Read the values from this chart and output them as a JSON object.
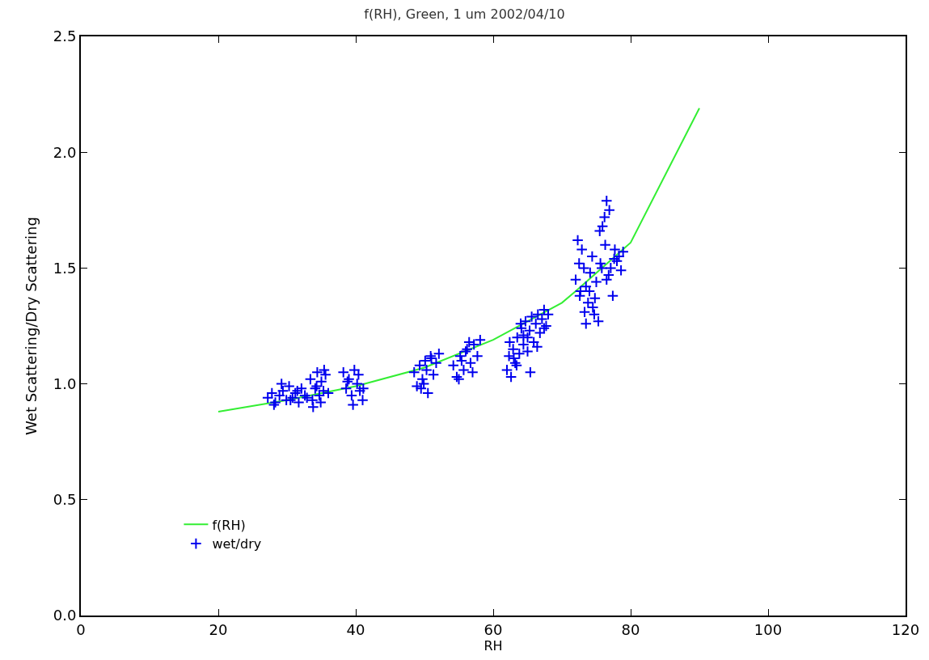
{
  "chart_data": {
    "type": "scatter",
    "title": "f(RH), Green, 1 um 2002/04/10",
    "xlabel": "RH",
    "ylabel": "Wet Scattering/Dry Scattering",
    "xlim": [
      0,
      120
    ],
    "xticks": [
      0,
      20,
      40,
      60,
      80,
      100,
      120
    ],
    "ylim": [
      0,
      2.5
    ],
    "yticks": [
      {
        "value": 0,
        "label": "0.0"
      },
      {
        "value": 0.5,
        "label": "0.5"
      },
      {
        "value": 1,
        "label": "1.0"
      },
      {
        "value": 1.5,
        "label": "1.5"
      },
      {
        "value": 2,
        "label": "2.0"
      },
      {
        "value": 2.5,
        "label": "2.5"
      }
    ],
    "grid": false,
    "legend": "bottom left",
    "series": [
      {
        "name": "f(RH)",
        "type": "line",
        "color": "#33ee33",
        "line_style": "solid",
        "marker": "none",
        "x": [
          20,
          30,
          40,
          50,
          60,
          70,
          72,
          80,
          90
        ],
        "values": [
          0.88,
          0.93,
          0.99,
          1.07,
          1.19,
          1.35,
          1.4,
          1.61,
          2.19
        ]
      },
      {
        "name": "wet/dry",
        "color": "#0000ee",
        "marker": "cross",
        "x": [
          27.2,
          27.8,
          28.3,
          28.9,
          29.4,
          29.9,
          30.3,
          30.8,
          31.2,
          31.7,
          32.1,
          32.6,
          28.1,
          29.2,
          30.5,
          31.5,
          32.9,
          33.4,
          33.8,
          34.1,
          34.4,
          34.7,
          35.0,
          35.3,
          35.6,
          33.7,
          34.3,
          34.9,
          35.4,
          36.0,
          38.2,
          38.6,
          39.0,
          39.4,
          39.8,
          40.2,
          40.6,
          41.0,
          38.8,
          39.6,
          40.4,
          41.1,
          48.5,
          48.9,
          49.3,
          49.7,
          50.1,
          50.5,
          50.9,
          51.3,
          51.7,
          52.1,
          49.5,
          50.3,
          51.0,
          49.9,
          54.2,
          54.7,
          55.2,
          55.7,
          56.2,
          56.7,
          57.2,
          57.7,
          58.1,
          55.0,
          56.0,
          57.0,
          56.5,
          55.4,
          62.0,
          62.3,
          62.6,
          62.9,
          63.2,
          63.5,
          63.8,
          64.1,
          64.4,
          64.7,
          65.0,
          65.3,
          65.6,
          65.9,
          66.2,
          66.5,
          66.8,
          67.1,
          67.4,
          67.7,
          68.0,
          62.4,
          63.4,
          64.4,
          65.4,
          66.4,
          67.4,
          63.0,
          64.0,
          65.0,
          72.0,
          72.3,
          72.6,
          72.9,
          73.2,
          73.5,
          73.8,
          74.1,
          74.4,
          74.7,
          75.0,
          75.3,
          75.6,
          75.9,
          76.2,
          76.5,
          76.8,
          77.1,
          77.4,
          77.7,
          78.0,
          78.3,
          78.6,
          78.9,
          72.5,
          73.3,
          74.0,
          74.8,
          75.5,
          76.3,
          76.9,
          76.5,
          73.5,
          74.5,
          72.7,
          75.8,
          77.6
        ],
        "values": [
          0.94,
          0.96,
          0.92,
          0.95,
          0.97,
          0.93,
          0.99,
          0.94,
          0.96,
          0.92,
          0.98,
          0.95,
          0.91,
          1.0,
          0.93,
          0.97,
          0.94,
          1.02,
          0.9,
          0.98,
          1.05,
          0.95,
          1.01,
          0.97,
          1.04,
          0.93,
          0.99,
          0.92,
          1.06,
          0.96,
          1.05,
          0.98,
          1.02,
          0.95,
          1.06,
          1.0,
          0.97,
          0.93,
          1.01,
          0.91,
          1.04,
          0.98,
          1.05,
          0.99,
          1.08,
          1.02,
          1.1,
          0.96,
          1.12,
          1.04,
          1.09,
          1.13,
          0.98,
          1.06,
          1.11,
          1.0,
          1.08,
          1.03,
          1.12,
          1.06,
          1.15,
          1.09,
          1.17,
          1.12,
          1.19,
          1.02,
          1.14,
          1.05,
          1.18,
          1.1,
          1.06,
          1.12,
          1.03,
          1.15,
          1.09,
          1.2,
          1.13,
          1.24,
          1.17,
          1.27,
          1.2,
          1.23,
          1.29,
          1.18,
          1.26,
          1.3,
          1.22,
          1.28,
          1.32,
          1.25,
          1.3,
          1.18,
          1.08,
          1.21,
          1.05,
          1.16,
          1.24,
          1.11,
          1.26,
          1.14,
          1.45,
          1.62,
          1.38,
          1.58,
          1.5,
          1.42,
          1.35,
          1.48,
          1.55,
          1.3,
          1.44,
          1.27,
          1.52,
          1.68,
          1.72,
          1.79,
          1.47,
          1.5,
          1.38,
          1.58,
          1.53,
          1.55,
          1.49,
          1.57,
          1.52,
          1.31,
          1.4,
          1.37,
          1.66,
          1.6,
          1.75,
          1.45,
          1.26,
          1.33,
          1.4,
          1.5,
          1.54
        ]
      }
    ]
  }
}
